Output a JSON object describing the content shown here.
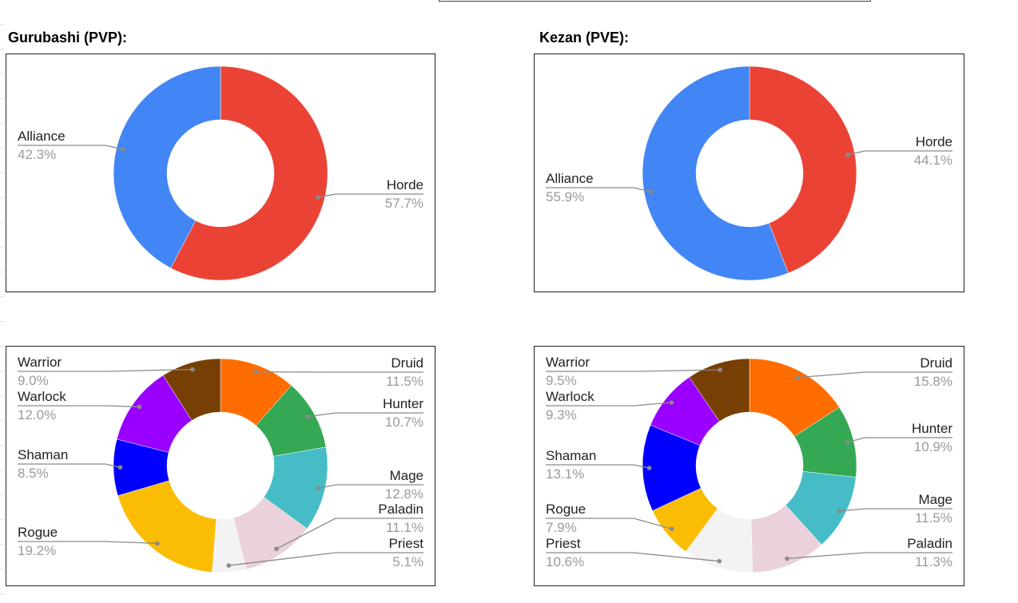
{
  "sheet": {
    "left_title": "Gurubashi (PVP):",
    "right_title": "Kezan (PVE):"
  },
  "chart_data": [
    {
      "type": "pie",
      "donut": true,
      "title": "",
      "slices": [
        {
          "label": "Horde",
          "value": 57.7,
          "pct_text": "57.7%",
          "color": "#ea4335"
        },
        {
          "label": "Alliance",
          "value": 42.3,
          "pct_text": "42.3%",
          "color": "#4285f4"
        }
      ]
    },
    {
      "type": "pie",
      "donut": true,
      "title": "",
      "slices": [
        {
          "label": "Horde",
          "value": 44.1,
          "pct_text": "44.1%",
          "color": "#ea4335"
        },
        {
          "label": "Alliance",
          "value": 55.9,
          "pct_text": "55.9%",
          "color": "#4285f4"
        }
      ]
    },
    {
      "type": "pie",
      "donut": true,
      "title": "",
      "slices": [
        {
          "label": "Druid",
          "value": 11.5,
          "pct_text": "11.5%",
          "color": "#ff6d01"
        },
        {
          "label": "Hunter",
          "value": 10.7,
          "pct_text": "10.7%",
          "color": "#34a853"
        },
        {
          "label": "Mage",
          "value": 12.8,
          "pct_text": "12.8%",
          "color": "#46bdc6"
        },
        {
          "label": "Paladin",
          "value": 11.1,
          "pct_text": "11.1%",
          "color": "#ead1dc"
        },
        {
          "label": "Priest",
          "value": 5.1,
          "pct_text": "5.1%",
          "color": "#f3f3f3"
        },
        {
          "label": "Rogue",
          "value": 19.2,
          "pct_text": "19.2%",
          "color": "#fbbc04"
        },
        {
          "label": "Shaman",
          "value": 8.5,
          "pct_text": "8.5%",
          "color": "#0000ff"
        },
        {
          "label": "Warlock",
          "value": 12.0,
          "pct_text": "12.0%",
          "color": "#9900ff"
        },
        {
          "label": "Warrior",
          "value": 9.0,
          "pct_text": "9.0%",
          "color": "#783f04"
        }
      ]
    },
    {
      "type": "pie",
      "donut": true,
      "title": "",
      "slices": [
        {
          "label": "Druid",
          "value": 15.8,
          "pct_text": "15.8%",
          "color": "#ff6d01"
        },
        {
          "label": "Hunter",
          "value": 10.9,
          "pct_text": "10.9%",
          "color": "#34a853"
        },
        {
          "label": "Mage",
          "value": 11.5,
          "pct_text": "11.5%",
          "color": "#46bdc6"
        },
        {
          "label": "Paladin",
          "value": 11.3,
          "pct_text": "11.3%",
          "color": "#ead1dc"
        },
        {
          "label": "Priest",
          "value": 10.6,
          "pct_text": "10.6%",
          "color": "#f3f3f3"
        },
        {
          "label": "Rogue",
          "value": 7.9,
          "pct_text": "7.9%",
          "color": "#fbbc04"
        },
        {
          "label": "Shaman",
          "value": 13.1,
          "pct_text": "13.1%",
          "color": "#0000ff"
        },
        {
          "label": "Warlock",
          "value": 9.3,
          "pct_text": "9.3%",
          "color": "#9900ff"
        },
        {
          "label": "Warrior",
          "value": 9.5,
          "pct_text": "9.5%",
          "color": "#783f04"
        }
      ]
    }
  ]
}
